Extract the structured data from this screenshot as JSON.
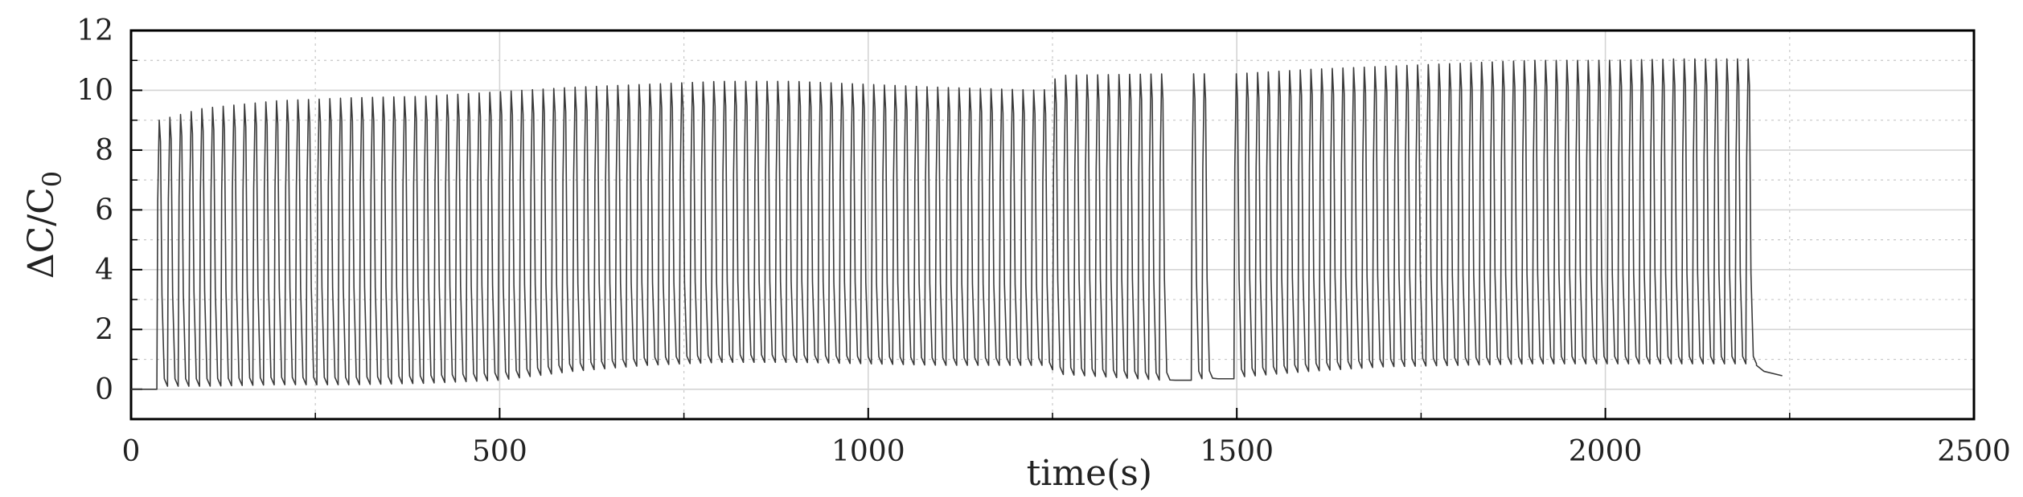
{
  "chart_data": {
    "type": "line",
    "title": "",
    "xlabel": "time(s)",
    "ylabel_main": "ΔC/C",
    "ylabel_sub": "0",
    "xlim": [
      0,
      2500
    ],
    "ylim": [
      -1,
      12
    ],
    "x_ticks": [
      0,
      500,
      1000,
      1500,
      2000,
      2500
    ],
    "x_tick_labels": [
      "0",
      "500",
      "1000",
      "1500",
      "2000",
      "2500"
    ],
    "y_ticks": [
      0,
      2,
      4,
      6,
      8,
      10,
      12
    ],
    "y_tick_labels": [
      "0",
      "2",
      "4",
      "6",
      "8",
      "10",
      "12"
    ],
    "grid": true,
    "legend": "none",
    "line_color": "#3a3a3a",
    "series": [
      {
        "baseline": {
          "start_x": 0,
          "end_x": 35,
          "value": 0
        },
        "cycle_start_x": 35,
        "cycle_end_x": 2205,
        "cycle_count": 150,
        "peak_envelope": [
          [
            40,
            9.0
          ],
          [
            100,
            9.4
          ],
          [
            200,
            9.65
          ],
          [
            300,
            9.75
          ],
          [
            400,
            9.8
          ],
          [
            500,
            9.95
          ],
          [
            600,
            10.1
          ],
          [
            700,
            10.2
          ],
          [
            800,
            10.3
          ],
          [
            900,
            10.3
          ],
          [
            1000,
            10.2
          ],
          [
            1100,
            10.1
          ],
          [
            1240,
            10.0
          ],
          [
            1260,
            10.5
          ],
          [
            1400,
            10.55
          ],
          [
            1500,
            10.55
          ],
          [
            1600,
            10.7
          ],
          [
            1700,
            10.8
          ],
          [
            1800,
            10.9
          ],
          [
            1900,
            11.0
          ],
          [
            2000,
            11.0
          ],
          [
            2100,
            11.05
          ],
          [
            2200,
            11.05
          ]
        ],
        "valley_envelope": [
          [
            40,
            0.1
          ],
          [
            100,
            0.1
          ],
          [
            200,
            0.15
          ],
          [
            300,
            0.15
          ],
          [
            400,
            0.2
          ],
          [
            500,
            0.3
          ],
          [
            600,
            0.6
          ],
          [
            700,
            0.8
          ],
          [
            800,
            0.9
          ],
          [
            900,
            0.9
          ],
          [
            1000,
            0.85
          ],
          [
            1100,
            0.8
          ],
          [
            1240,
            0.8
          ],
          [
            1260,
            0.5
          ],
          [
            1400,
            0.3
          ],
          [
            1500,
            0.4
          ],
          [
            1600,
            0.6
          ],
          [
            1700,
            0.75
          ],
          [
            1800,
            0.8
          ],
          [
            1900,
            0.85
          ],
          [
            2000,
            0.85
          ],
          [
            2100,
            0.85
          ],
          [
            2200,
            0.85
          ]
        ],
        "gap_cycles": [
          {
            "start_x": 1405,
            "end_x": 1435,
            "value": 0.3
          },
          {
            "start_x": 1470,
            "end_x": 1500,
            "value": 0.35
          }
        ],
        "tail": [
          [
            2205,
            0.8
          ],
          [
            2215,
            0.6
          ],
          [
            2240,
            0.45
          ]
        ]
      }
    ]
  }
}
